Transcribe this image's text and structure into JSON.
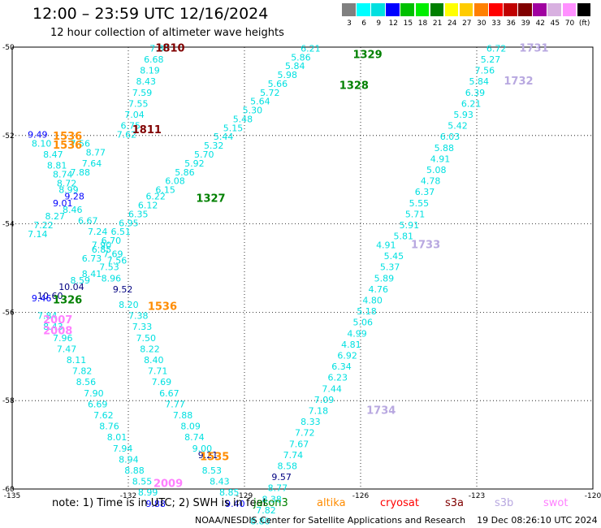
{
  "header": {
    "title": "12:00 – 23:59 UTC 12/16/2024",
    "subtitle": "12 hour collection of altimeter wave heights"
  },
  "colorbar": {
    "colors": [
      "#808080",
      "#00ffff",
      "#00e0e0",
      "#0000ff",
      "#00c000",
      "#00ee00",
      "#008000",
      "#ffff00",
      "#ffcc00",
      "#ff8000",
      "#ff0000",
      "#c00000",
      "#800000",
      "#a000a0",
      "#d8b0e0",
      "#ff90ff",
      "#000000"
    ],
    "labels": [
      "3",
      "6",
      "9",
      "12",
      "15",
      "18",
      "21",
      "24",
      "27",
      "30",
      "33",
      "36",
      "39",
      "42",
      "45",
      "70",
      "(ft)"
    ]
  },
  "footer": {
    "note": "note:  1) Time is in UTC;  2) SWH is in feet",
    "credit": "NOAA/NESDIS Center for Satellite Applications and Research",
    "timestamp": "19 Dec 08:26:10 UTC 2024",
    "satellites": [
      {
        "name": "jason3",
        "color": "#008000"
      },
      {
        "name": "altika",
        "color": "#ff8c00"
      },
      {
        "name": "cryosat",
        "color": "#ff0000"
      },
      {
        "name": "s3a",
        "color": "#800000"
      },
      {
        "name": "s3b",
        "color": "#b8a8e0"
      },
      {
        "name": "swot",
        "color": "#ff80ff"
      }
    ]
  },
  "chart_data": {
    "type": "scatter",
    "xlim": [
      -135,
      -120
    ],
    "ylim": [
      -60,
      -50
    ],
    "x_ticks": [
      "-135",
      "-132",
      "-129",
      "-126",
      "-123",
      "-120"
    ],
    "y_ticks": [
      "-50",
      "-52",
      "-54",
      "-56",
      "-58",
      "-60"
    ],
    "grid": true,
    "points": [
      {
        "lon": -131.45,
        "lat": -50.1,
        "v": "7.83",
        "c": "#00e0e0"
      },
      {
        "lon": -131.6,
        "lat": -50.35,
        "v": "6.68",
        "c": "#00e0e0"
      },
      {
        "lon": -131.7,
        "lat": -50.6,
        "v": "8.19",
        "c": "#00e0e0"
      },
      {
        "lon": -131.8,
        "lat": -50.85,
        "v": "8.43",
        "c": "#00e0e0"
      },
      {
        "lon": -131.9,
        "lat": -51.1,
        "v": "7.59",
        "c": "#00e0e0"
      },
      {
        "lon": -132.0,
        "lat": -51.35,
        "v": "7.55",
        "c": "#00e0e0"
      },
      {
        "lon": -132.1,
        "lat": -51.6,
        "v": "7.04",
        "c": "#00e0e0"
      },
      {
        "lon": -132.2,
        "lat": -51.85,
        "v": "6.75",
        "c": "#00e0e0"
      },
      {
        "lon": -132.3,
        "lat": -52.05,
        "v": "7.62",
        "c": "#00e0e0"
      },
      {
        "lon": -134.6,
        "lat": -52.05,
        "v": "9.49",
        "c": "#0000ff"
      },
      {
        "lon": -134.5,
        "lat": -52.25,
        "v": "8.10",
        "c": "#00e0e0"
      },
      {
        "lon": -133.5,
        "lat": -52.25,
        "v": "7.56",
        "c": "#00e0e0"
      },
      {
        "lon": -133.1,
        "lat": -52.45,
        "v": "8.77",
        "c": "#00e0e0"
      },
      {
        "lon": -134.2,
        "lat": -52.5,
        "v": "8.47",
        "c": "#00e0e0"
      },
      {
        "lon": -133.2,
        "lat": -52.7,
        "v": "7.64",
        "c": "#00e0e0"
      },
      {
        "lon": -134.1,
        "lat": -52.75,
        "v": "8.81",
        "c": "#00e0e0"
      },
      {
        "lon": -133.5,
        "lat": -52.9,
        "v": "7.88",
        "c": "#00e0e0"
      },
      {
        "lon": -133.95,
        "lat": -52.95,
        "v": "8.74",
        "c": "#00e0e0"
      },
      {
        "lon": -133.85,
        "lat": -53.15,
        "v": "8.72",
        "c": "#00e0e0"
      },
      {
        "lon": -133.8,
        "lat": -53.3,
        "v": "8.99",
        "c": "#00e0e0"
      },
      {
        "lon": -133.65,
        "lat": -53.45,
        "v": "9.28",
        "c": "#0000ff"
      },
      {
        "lon": -133.95,
        "lat": -53.6,
        "v": "9.01",
        "c": "#0000ff"
      },
      {
        "lon": -133.7,
        "lat": -53.75,
        "v": "8.46",
        "c": "#00e0e0"
      },
      {
        "lon": -134.15,
        "lat": -53.9,
        "v": "8.27",
        "c": "#00e0e0"
      },
      {
        "lon": -133.3,
        "lat": -54.0,
        "v": "6.67",
        "c": "#00e0e0"
      },
      {
        "lon": -134.45,
        "lat": -54.1,
        "v": "7.22",
        "c": "#00e0e0"
      },
      {
        "lon": -133.05,
        "lat": -54.25,
        "v": "7.24",
        "c": "#00e0e0"
      },
      {
        "lon": -134.6,
        "lat": -54.3,
        "v": "7.14",
        "c": "#00e0e0"
      },
      {
        "lon": -132.95,
        "lat": -54.55,
        "v": "7.90",
        "c": "#00e0e0"
      },
      {
        "lon": -132.65,
        "lat": -54.75,
        "v": "7.69",
        "c": "#00e0e0"
      },
      {
        "lon": -132.55,
        "lat": -54.9,
        "v": "7.56",
        "c": "#00e0e0"
      },
      {
        "lon": -132.75,
        "lat": -55.05,
        "v": "7.53",
        "c": "#00e0e0"
      },
      {
        "lon": -133.2,
        "lat": -55.2,
        "v": "8.41",
        "c": "#00e0e0"
      },
      {
        "lon": -132.7,
        "lat": -55.3,
        "v": "8.96",
        "c": "#00e0e0"
      },
      {
        "lon": -133.5,
        "lat": -55.35,
        "v": "8.59",
        "c": "#00e0e0"
      },
      {
        "lon": -133.8,
        "lat": -55.5,
        "v": "10.04",
        "c": "#000080"
      },
      {
        "lon": -132.4,
        "lat": -55.55,
        "v": "9.52",
        "c": "#000080"
      },
      {
        "lon": -134.35,
        "lat": -55.7,
        "v": "10.60",
        "c": "#000080"
      },
      {
        "lon": -134.5,
        "lat": -55.75,
        "v": "9.46",
        "c": "#0000ff"
      },
      {
        "lon": -132.25,
        "lat": -55.9,
        "v": "8.20",
        "c": "#00e0e0"
      },
      {
        "lon": -134.35,
        "lat": -56.15,
        "v": "7.84",
        "c": "#00e0e0"
      },
      {
        "lon": -132.0,
        "lat": -56.15,
        "v": "7.38",
        "c": "#00e0e0"
      },
      {
        "lon": -134.2,
        "lat": -56.4,
        "v": "8.43",
        "c": "#00e0e0"
      },
      {
        "lon": -131.9,
        "lat": -56.4,
        "v": "7.33",
        "c": "#00e0e0"
      },
      {
        "lon": -133.95,
        "lat": -56.65,
        "v": "7.96",
        "c": "#00e0e0"
      },
      {
        "lon": -131.8,
        "lat": -56.65,
        "v": "7.50",
        "c": "#00e0e0"
      },
      {
        "lon": -133.85,
        "lat": -56.9,
        "v": "7.47",
        "c": "#00e0e0"
      },
      {
        "lon": -131.7,
        "lat": -56.9,
        "v": "8.22",
        "c": "#00e0e0"
      },
      {
        "lon": -133.6,
        "lat": -57.15,
        "v": "8.11",
        "c": "#00e0e0"
      },
      {
        "lon": -131.6,
        "lat": -57.15,
        "v": "8.40",
        "c": "#00e0e0"
      },
      {
        "lon": -133.45,
        "lat": -57.4,
        "v": "7.82",
        "c": "#00e0e0"
      },
      {
        "lon": -131.5,
        "lat": -57.4,
        "v": "7.71",
        "c": "#00e0e0"
      },
      {
        "lon": -133.35,
        "lat": -57.65,
        "v": "8.56",
        "c": "#00e0e0"
      },
      {
        "lon": -131.4,
        "lat": -57.65,
        "v": "7.69",
        "c": "#00e0e0"
      },
      {
        "lon": -133.15,
        "lat": -57.9,
        "v": "7.90",
        "c": "#00e0e0"
      },
      {
        "lon": -131.2,
        "lat": -57.9,
        "v": "6.67",
        "c": "#00e0e0"
      },
      {
        "lon": -133.05,
        "lat": -58.15,
        "v": "6.69",
        "c": "#00e0e0"
      },
      {
        "lon": -131.05,
        "lat": -58.15,
        "v": "7.77",
        "c": "#00e0e0"
      },
      {
        "lon": -132.9,
        "lat": -58.4,
        "v": "7.62",
        "c": "#00e0e0"
      },
      {
        "lon": -130.85,
        "lat": -58.4,
        "v": "7.88",
        "c": "#00e0e0"
      },
      {
        "lon": -132.75,
        "lat": -58.65,
        "v": "8.76",
        "c": "#00e0e0"
      },
      {
        "lon": -130.65,
        "lat": -58.65,
        "v": "8.09",
        "c": "#00e0e0"
      },
      {
        "lon": -132.55,
        "lat": -58.9,
        "v": "8.01",
        "c": "#00e0e0"
      },
      {
        "lon": -130.55,
        "lat": -58.9,
        "v": "8.74",
        "c": "#00e0e0"
      },
      {
        "lon": -132.4,
        "lat": -59.15,
        "v": "7.94",
        "c": "#00e0e0"
      },
      {
        "lon": -130.35,
        "lat": -59.15,
        "v": "9.00",
        "c": "#00e0e0"
      },
      {
        "lon": -130.2,
        "lat": -59.3,
        "v": "9.21",
        "c": "#000080"
      },
      {
        "lon": -132.25,
        "lat": -59.4,
        "v": "8.94",
        "c": "#00e0e0"
      },
      {
        "lon": -132.1,
        "lat": -59.65,
        "v": "8.88",
        "c": "#00e0e0"
      },
      {
        "lon": -130.1,
        "lat": -59.65,
        "v": "8.53",
        "c": "#00e0e0"
      },
      {
        "lon": -131.9,
        "lat": -59.9,
        "v": "8.55",
        "c": "#00e0e0"
      },
      {
        "lon": -129.9,
        "lat": -59.9,
        "v": "8.43",
        "c": "#00e0e0"
      },
      {
        "lon": -131.75,
        "lat": -60.15,
        "v": "8.99",
        "c": "#00e0e0"
      },
      {
        "lon": -129.65,
        "lat": -60.15,
        "v": "8.85",
        "c": "#00e0e0"
      },
      {
        "lon": -131.55,
        "lat": -60.4,
        "v": "9.88",
        "c": "#0000ff"
      },
      {
        "lon": -129.5,
        "lat": -60.4,
        "v": "9.40",
        "c": "#0000ff"
      },
      {
        "lon": -127.55,
        "lat": -50.1,
        "v": "6.21",
        "c": "#00e0e0"
      },
      {
        "lon": -127.8,
        "lat": -50.3,
        "v": "5.86",
        "c": "#00e0e0"
      },
      {
        "lon": -127.95,
        "lat": -50.5,
        "v": "5.84",
        "c": "#00e0e0"
      },
      {
        "lon": -128.15,
        "lat": -50.7,
        "v": "5.98",
        "c": "#00e0e0"
      },
      {
        "lon": -128.4,
        "lat": -50.9,
        "v": "5.66",
        "c": "#00e0e0"
      },
      {
        "lon": -128.6,
        "lat": -51.1,
        "v": "5.72",
        "c": "#00e0e0"
      },
      {
        "lon": -128.85,
        "lat": -51.3,
        "v": "5.64",
        "c": "#00e0e0"
      },
      {
        "lon": -129.05,
        "lat": -51.5,
        "v": "5.30",
        "c": "#00e0e0"
      },
      {
        "lon": -129.3,
        "lat": -51.7,
        "v": "5.48",
        "c": "#00e0e0"
      },
      {
        "lon": -129.55,
        "lat": -51.9,
        "v": "5.15",
        "c": "#00e0e0"
      },
      {
        "lon": -129.8,
        "lat": -52.1,
        "v": "5.44",
        "c": "#00e0e0"
      },
      {
        "lon": -130.05,
        "lat": -52.3,
        "v": "5.32",
        "c": "#00e0e0"
      },
      {
        "lon": -130.3,
        "lat": -52.5,
        "v": "5.70",
        "c": "#00e0e0"
      },
      {
        "lon": -130.55,
        "lat": -52.7,
        "v": "5.92",
        "c": "#00e0e0"
      },
      {
        "lon": -130.8,
        "lat": -52.9,
        "v": "5.86",
        "c": "#00e0e0"
      },
      {
        "lon": -131.05,
        "lat": -53.1,
        "v": "6.08",
        "c": "#00e0e0"
      },
      {
        "lon": -131.3,
        "lat": -53.3,
        "v": "6.15",
        "c": "#00e0e0"
      },
      {
        "lon": -131.55,
        "lat": -53.45,
        "v": "6.22",
        "c": "#00e0e0"
      },
      {
        "lon": -131.75,
        "lat": -53.65,
        "v": "6.12",
        "c": "#00e0e0"
      },
      {
        "lon": -132.0,
        "lat": -53.85,
        "v": "6.35",
        "c": "#00e0e0"
      },
      {
        "lon": -132.25,
        "lat": -54.05,
        "v": "6.95",
        "c": "#00e0e0"
      },
      {
        "lon": -132.45,
        "lat": -54.25,
        "v": "6.51",
        "c": "#00e0e0"
      },
      {
        "lon": -132.7,
        "lat": -54.45,
        "v": "6.70",
        "c": "#00e0e0"
      },
      {
        "lon": -132.95,
        "lat": -54.65,
        "v": "6.85",
        "c": "#00e0e0"
      },
      {
        "lon": -133.2,
        "lat": -54.85,
        "v": "6.73",
        "c": "#00e0e0"
      },
      {
        "lon": -122.75,
        "lat": -50.1,
        "v": "6.72",
        "c": "#00e0e0"
      },
      {
        "lon": -122.9,
        "lat": -50.35,
        "v": "5.27",
        "c": "#00e0e0"
      },
      {
        "lon": -123.05,
        "lat": -50.6,
        "v": "7.56",
        "c": "#00e0e0"
      },
      {
        "lon": -123.2,
        "lat": -50.85,
        "v": "5.84",
        "c": "#00e0e0"
      },
      {
        "lon": -123.3,
        "lat": -51.1,
        "v": "6.39",
        "c": "#00e0e0"
      },
      {
        "lon": -123.4,
        "lat": -51.35,
        "v": "6.21",
        "c": "#00e0e0"
      },
      {
        "lon": -123.6,
        "lat": -51.6,
        "v": "5.93",
        "c": "#00e0e0"
      },
      {
        "lon": -123.75,
        "lat": -51.85,
        "v": "5.42",
        "c": "#00e0e0"
      },
      {
        "lon": -123.95,
        "lat": -52.1,
        "v": "6.03",
        "c": "#00e0e0"
      },
      {
        "lon": -124.1,
        "lat": -52.35,
        "v": "5.88",
        "c": "#00e0e0"
      },
      {
        "lon": -124.2,
        "lat": -52.6,
        "v": "4.91",
        "c": "#00e0e0"
      },
      {
        "lon": -124.3,
        "lat": -52.85,
        "v": "5.08",
        "c": "#00e0e0"
      },
      {
        "lon": -124.45,
        "lat": -53.1,
        "v": "4.78",
        "c": "#00e0e0"
      },
      {
        "lon": -124.6,
        "lat": -53.35,
        "v": "6.37",
        "c": "#00e0e0"
      },
      {
        "lon": -124.75,
        "lat": -53.6,
        "v": "5.55",
        "c": "#00e0e0"
      },
      {
        "lon": -124.85,
        "lat": -53.85,
        "v": "5.71",
        "c": "#00e0e0"
      },
      {
        "lon": -125.0,
        "lat": -54.1,
        "v": "5.91",
        "c": "#00e0e0"
      },
      {
        "lon": -125.15,
        "lat": -54.35,
        "v": "5.81",
        "c": "#00e0e0"
      },
      {
        "lon": -125.6,
        "lat": -54.55,
        "v": "4.91",
        "c": "#00e0e0"
      },
      {
        "lon": -125.4,
        "lat": -54.8,
        "v": "5.45",
        "c": "#00e0e0"
      },
      {
        "lon": -125.5,
        "lat": -55.05,
        "v": "5.37",
        "c": "#00e0e0"
      },
      {
        "lon": -125.65,
        "lat": -55.3,
        "v": "5.89",
        "c": "#00e0e0"
      },
      {
        "lon": -125.8,
        "lat": -55.55,
        "v": "4.76",
        "c": "#00e0e0"
      },
      {
        "lon": -125.95,
        "lat": -55.8,
        "v": "4.80",
        "c": "#00e0e0"
      },
      {
        "lon": -126.1,
        "lat": -56.05,
        "v": "5.18",
        "c": "#00e0e0"
      },
      {
        "lon": -126.2,
        "lat": -56.3,
        "v": "5.06",
        "c": "#00e0e0"
      },
      {
        "lon": -126.35,
        "lat": -56.55,
        "v": "4.99",
        "c": "#00e0e0"
      },
      {
        "lon": -126.5,
        "lat": -56.8,
        "v": "4.81",
        "c": "#00e0e0"
      },
      {
        "lon": -126.6,
        "lat": -57.05,
        "v": "6.92",
        "c": "#00e0e0"
      },
      {
        "lon": -126.75,
        "lat": -57.3,
        "v": "6.34",
        "c": "#00e0e0"
      },
      {
        "lon": -126.85,
        "lat": -57.55,
        "v": "6.23",
        "c": "#00e0e0"
      },
      {
        "lon": -127.0,
        "lat": -57.8,
        "v": "7.44",
        "c": "#00e0e0"
      },
      {
        "lon": -127.2,
        "lat": -58.05,
        "v": "7.09",
        "c": "#00e0e0"
      },
      {
        "lon": -127.35,
        "lat": -58.3,
        "v": "7.18",
        "c": "#00e0e0"
      },
      {
        "lon": -127.55,
        "lat": -58.55,
        "v": "8.33",
        "c": "#00e0e0"
      },
      {
        "lon": -127.7,
        "lat": -58.8,
        "v": "7.72",
        "c": "#00e0e0"
      },
      {
        "lon": -127.85,
        "lat": -59.05,
        "v": "7.67",
        "c": "#00e0e0"
      },
      {
        "lon": -128.0,
        "lat": -59.3,
        "v": "7.74",
        "c": "#00e0e0"
      },
      {
        "lon": -128.15,
        "lat": -59.55,
        "v": "8.58",
        "c": "#00e0e0"
      },
      {
        "lon": -128.3,
        "lat": -59.8,
        "v": "9.57",
        "c": "#000080"
      },
      {
        "lon": -128.4,
        "lat": -60.05,
        "v": "8.77",
        "c": "#00e0e0"
      },
      {
        "lon": -128.55,
        "lat": -60.3,
        "v": "8.38",
        "c": "#00e0e0"
      },
      {
        "lon": -128.7,
        "lat": -60.55,
        "v": "7.82",
        "c": "#00e0e0"
      },
      {
        "lon": -128.85,
        "lat": -60.8,
        "v": "8.80",
        "c": "#00e0e0"
      }
    ],
    "pass_labels": [
      {
        "lon": -131.3,
        "lat": -50.1,
        "v": "1810",
        "c": "#800000"
      },
      {
        "lon": -131.9,
        "lat": -51.95,
        "v": "1811",
        "c": "#800000"
      },
      {
        "lon": -133.95,
        "lat": -52.1,
        "v": "1536",
        "c": "#ff8c00"
      },
      {
        "lon": -133.95,
        "lat": -52.3,
        "v": "1536",
        "c": "#ff8c00"
      },
      {
        "lon": -131.5,
        "lat": -55.95,
        "v": "1536",
        "c": "#ff8c00"
      },
      {
        "lon": -130.15,
        "lat": -59.35,
        "v": "1535",
        "c": "#ff8c00"
      },
      {
        "lon": -126.2,
        "lat": -50.25,
        "v": "1329",
        "c": "#008000"
      },
      {
        "lon": -126.55,
        "lat": -50.95,
        "v": "1328",
        "c": "#008000"
      },
      {
        "lon": -130.25,
        "lat": -53.5,
        "v": "1327",
        "c": "#008000"
      },
      {
        "lon": -133.95,
        "lat": -55.8,
        "v": "1326",
        "c": "#008000"
      },
      {
        "lon": -134.2,
        "lat": -56.25,
        "v": "2007",
        "c": "#ff80ff"
      },
      {
        "lon": -134.2,
        "lat": -56.5,
        "v": "2008",
        "c": "#ff80ff"
      },
      {
        "lon": -131.35,
        "lat": -59.95,
        "v": "2009",
        "c": "#ff80ff"
      },
      {
        "lon": -121.9,
        "lat": -50.1,
        "v": "1731",
        "c": "#b8a8e0"
      },
      {
        "lon": -122.3,
        "lat": -50.85,
        "v": "1732",
        "c": "#b8a8e0"
      },
      {
        "lon": -124.7,
        "lat": -54.55,
        "v": "1733",
        "c": "#b8a8e0"
      },
      {
        "lon": -125.85,
        "lat": -58.3,
        "v": "1734",
        "c": "#b8a8e0"
      }
    ]
  }
}
